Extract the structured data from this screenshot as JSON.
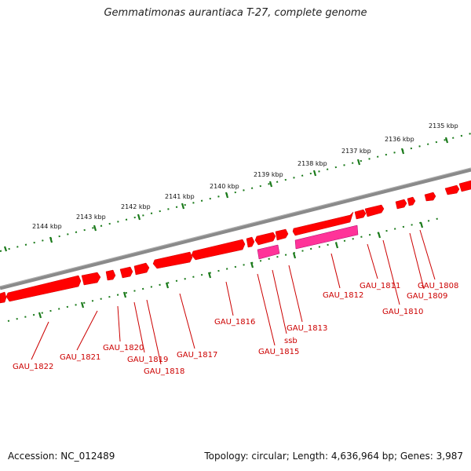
{
  "title": "Gemmatimonas aurantiaca T-27, complete genome",
  "accession": "Accession: NC_012489",
  "summary": "Topology: circular; Length: 4,636,964 bp; Genes: 3,987",
  "scale_labels": [
    "2135 kbp",
    "2136 kbp",
    "2137 kbp",
    "2138 kbp",
    "2139 kbp",
    "2140 kbp",
    "2141 kbp",
    "2142 kbp",
    "2143 kbp",
    "2144 kbp"
  ],
  "genes": [
    "GAU_1808",
    "GAU_1809",
    "GAU_1810",
    "GAU_1811",
    "GAU_1812",
    "GAU_1813",
    "ssb",
    "GAU_1815",
    "GAU_1816",
    "GAU_1817",
    "GAU_1818",
    "GAU_1819",
    "GAU_1820",
    "GAU_1821",
    "GAU_1822"
  ],
  "colors": {
    "cds": "#ff0000",
    "cds_highlight": "#ff3399",
    "backbone": "#888888",
    "scale": "#1a7a1a",
    "label": "#cc0000"
  }
}
